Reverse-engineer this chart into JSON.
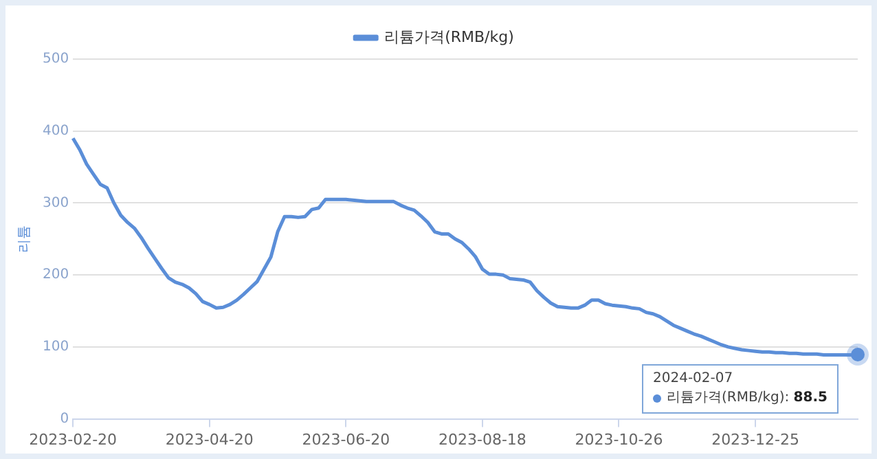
{
  "chart_data": {
    "type": "line",
    "ylabel": "리튬",
    "legend": "top",
    "categories": [
      "2023-02-20",
      null,
      null,
      null,
      null,
      null,
      null,
      null,
      null,
      null,
      null,
      null,
      null,
      null,
      null,
      null,
      null,
      null,
      null,
      null,
      "2023-04-20",
      null,
      null,
      null,
      null,
      null,
      null,
      null,
      null,
      null,
      null,
      null,
      null,
      null,
      null,
      null,
      null,
      null,
      null,
      null,
      "2023-06-20",
      null,
      null,
      null,
      null,
      null,
      null,
      null,
      null,
      null,
      null,
      null,
      null,
      null,
      null,
      null,
      null,
      null,
      null,
      null,
      "2023-08-18",
      null,
      null,
      null,
      null,
      null,
      null,
      null,
      null,
      null,
      null,
      null,
      null,
      null,
      null,
      null,
      null,
      null,
      null,
      null,
      "2023-10-26",
      null,
      null,
      null,
      null,
      null,
      null,
      null,
      null,
      null,
      null,
      null,
      null,
      null,
      null,
      null,
      null,
      null,
      null,
      null,
      "2023-12-25",
      null,
      null,
      null,
      null,
      null,
      null,
      null,
      null,
      null,
      null,
      null,
      null,
      null,
      null,
      null
    ],
    "series": [
      {
        "name": "리튬가격(RMB/kg)",
        "color": "#5b8ed8",
        "values": [
          390,
          374,
          354,
          340,
          326,
          321,
          300,
          283,
          273,
          265,
          252,
          237,
          223,
          209,
          196,
          190,
          187,
          182,
          174,
          163,
          159,
          154,
          155,
          159,
          165,
          173,
          182,
          191,
          208,
          225,
          260,
          281,
          281,
          280,
          281,
          291,
          293,
          305,
          305,
          305,
          305,
          304,
          303,
          302,
          302,
          302,
          302,
          302,
          297,
          293,
          290,
          282,
          273,
          260,
          257,
          257,
          250,
          245,
          236,
          225,
          208,
          201,
          201,
          200,
          195,
          194,
          193,
          190,
          178,
          169,
          161,
          156,
          155,
          154,
          154,
          158,
          165,
          165,
          160,
          158,
          157,
          156,
          154,
          153,
          148,
          146,
          142,
          136,
          130,
          126,
          122,
          118,
          115,
          111,
          107,
          103,
          100,
          98,
          96,
          95,
          94,
          93,
          93,
          92,
          92,
          91,
          91,
          90,
          90,
          90,
          89,
          89,
          89,
          89,
          89,
          88.5
        ]
      }
    ],
    "ylim": [
      0,
      500
    ],
    "yticks": [
      0,
      100,
      200,
      300,
      400,
      500
    ],
    "grid": "y",
    "marker": "none",
    "line_style": "solid",
    "annotations": [
      {
        "text": "2024-02-07\n리튬가격(RMB/kg): 88.5",
        "y": 88.5
      }
    ]
  }
}
